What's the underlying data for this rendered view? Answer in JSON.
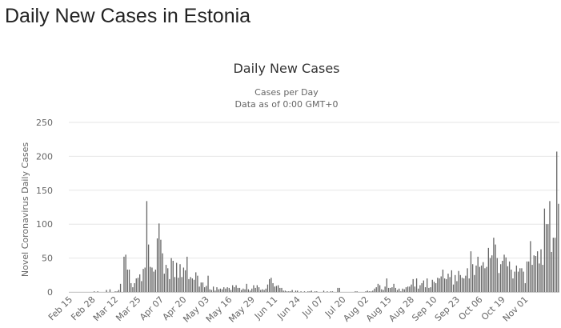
{
  "page": {
    "heading": "Daily New Cases in Estonia"
  },
  "chart_data": {
    "type": "bar",
    "title": "Daily New Cases",
    "subtitle_1": "Cases per Day",
    "subtitle_2": "Data as of 0:00 GMT+0",
    "ylabel": "Novel Coronavirus Daily Cases",
    "xlabel": "",
    "ylim": [
      0,
      250
    ],
    "y_ticks": [
      "0",
      "50",
      "100",
      "150",
      "200",
      "250"
    ],
    "x_tick_labels": [
      "Feb 15",
      "Feb 28",
      "Mar 12",
      "Mar 25",
      "Apr 07",
      "Apr 20",
      "May 03",
      "May 16",
      "May 29",
      "Jun 11",
      "Jun 24",
      "Jul 07",
      "Jul 20",
      "Aug 02",
      "Aug 15",
      "Aug 28",
      "Sep 10",
      "Sep 23",
      "Oct 06",
      "Oct 19",
      "Nov 01"
    ],
    "x_tick_interval_days": 13,
    "grid": true,
    "legend": "none",
    "colors": {
      "bar": "#666666",
      "grid": "#e6e6e6",
      "axis_text": "#666666",
      "title": "#333333"
    },
    "series": [
      {
        "start_date": "Feb 15",
        "values": [
          0,
          0,
          0,
          0,
          0,
          0,
          0,
          0,
          0,
          0,
          0,
          0,
          0,
          0,
          1,
          0,
          1,
          0,
          0,
          0,
          0,
          3,
          0,
          4,
          0,
          0,
          1,
          1,
          3,
          12,
          0,
          52,
          55,
          33,
          33,
          13,
          7,
          13,
          20,
          21,
          26,
          16,
          34,
          36,
          134,
          70,
          37,
          36,
          30,
          33,
          79,
          101,
          77,
          57,
          27,
          40,
          35,
          19,
          50,
          46,
          22,
          43,
          21,
          41,
          22,
          36,
          32,
          52,
          19,
          22,
          20,
          18,
          29,
          24,
          8,
          14,
          14,
          7,
          9,
          24,
          4,
          3,
          8,
          2,
          7,
          4,
          5,
          4,
          7,
          5,
          7,
          6,
          3,
          10,
          7,
          10,
          6,
          6,
          3,
          5,
          4,
          12,
          4,
          2,
          5,
          10,
          6,
          10,
          7,
          3,
          4,
          3,
          5,
          11,
          19,
          21,
          13,
          8,
          9,
          10,
          6,
          6,
          2,
          2,
          1,
          1,
          1,
          3,
          0,
          2,
          2,
          0,
          1,
          0,
          1,
          0,
          1,
          1,
          2,
          0,
          1,
          1,
          0,
          0,
          0,
          2,
          0,
          1,
          0,
          1,
          1,
          0,
          0,
          6,
          6,
          0,
          0,
          0,
          0,
          0,
          0,
          0,
          0,
          1,
          1,
          0,
          0,
          0,
          0,
          1,
          2,
          1,
          1,
          2,
          5,
          7,
          12,
          10,
          4,
          3,
          8,
          20,
          6,
          6,
          7,
          12,
          6,
          3,
          5,
          1,
          5,
          4,
          7,
          8,
          8,
          11,
          19,
          8,
          20,
          5,
          10,
          13,
          17,
          7,
          20,
          6,
          7,
          18,
          15,
          13,
          21,
          20,
          23,
          33,
          20,
          19,
          27,
          22,
          32,
          11,
          25,
          16,
          31,
          25,
          21,
          20,
          24,
          35,
          20,
          60,
          41,
          25,
          39,
          52,
          37,
          39,
          44,
          35,
          37,
          65,
          50,
          54,
          80,
          70,
          50,
          28,
          41,
          46,
          55,
          51,
          38,
          45,
          33,
          20,
          30,
          39,
          30,
          35,
          35,
          30,
          13,
          45,
          45,
          75,
          40,
          54,
          53,
          60,
          42,
          63,
          40,
          123,
          100,
          100,
          134,
          59,
          80,
          80,
          207,
          130
        ]
      }
    ]
  }
}
